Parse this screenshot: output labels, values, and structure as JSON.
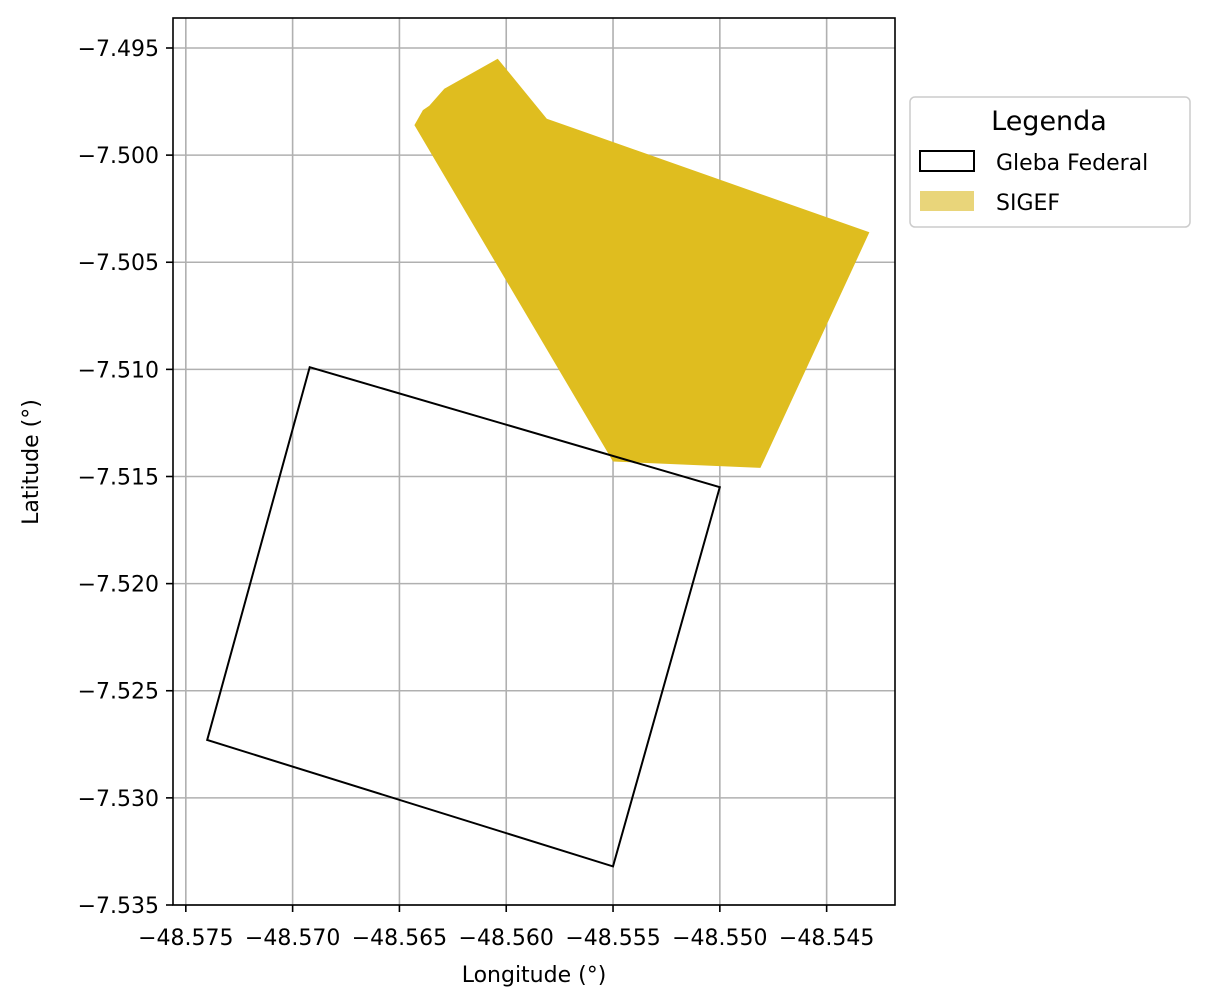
{
  "chart_data": {
    "type": "map",
    "xlabel": "Longitude (°)",
    "ylabel": "Latitude (°)",
    "xlim": [
      -48.5756,
      -48.5418
    ],
    "ylim": [
      -7.535,
      -7.4936
    ],
    "xticks": [
      -48.575,
      -48.57,
      -48.565,
      -48.56,
      -48.555,
      -48.55,
      -48.545
    ],
    "xtick_labels": [
      "−48.575",
      "−48.570",
      "−48.565",
      "−48.560",
      "−48.555",
      "−48.550",
      "−48.545"
    ],
    "yticks": [
      -7.495,
      -7.5,
      -7.505,
      -7.51,
      -7.515,
      -7.52,
      -7.525,
      -7.53,
      -7.535
    ],
    "ytick_labels": [
      "−7.495",
      "−7.500",
      "−7.505",
      "−7.510",
      "−7.515",
      "−7.520",
      "−7.525",
      "−7.530",
      "−7.535"
    ],
    "grid": true,
    "legend": {
      "title": "Legenda",
      "placement": "outside-upper-right",
      "entries": [
        {
          "label": "Gleba Federal",
          "style": "outline",
          "color": "#000000"
        },
        {
          "label": "SIGEF",
          "style": "fill",
          "color": "#e9d57a"
        }
      ]
    },
    "layers": [
      {
        "name": "SIGEF",
        "style": "fill",
        "fill_color": "#dfbd1f",
        "coordinates": [
          [
            -48.5643,
            -7.4986
          ],
          [
            -48.5639,
            -7.4979
          ],
          [
            -48.5636,
            -7.4977
          ],
          [
            -48.5629,
            -7.4969
          ],
          [
            -48.5604,
            -7.4955
          ],
          [
            -48.5581,
            -7.4983
          ],
          [
            -48.543,
            -7.5036
          ],
          [
            -48.5481,
            -7.5146
          ],
          [
            -48.555,
            -7.5143
          ]
        ]
      },
      {
        "name": "Gleba Federal",
        "style": "outline",
        "stroke_color": "#000000",
        "coordinates": [
          [
            -48.5692,
            -7.5099
          ],
          [
            -48.55,
            -7.5155
          ],
          [
            -48.555,
            -7.5332
          ],
          [
            -48.574,
            -7.5273
          ]
        ]
      }
    ]
  }
}
